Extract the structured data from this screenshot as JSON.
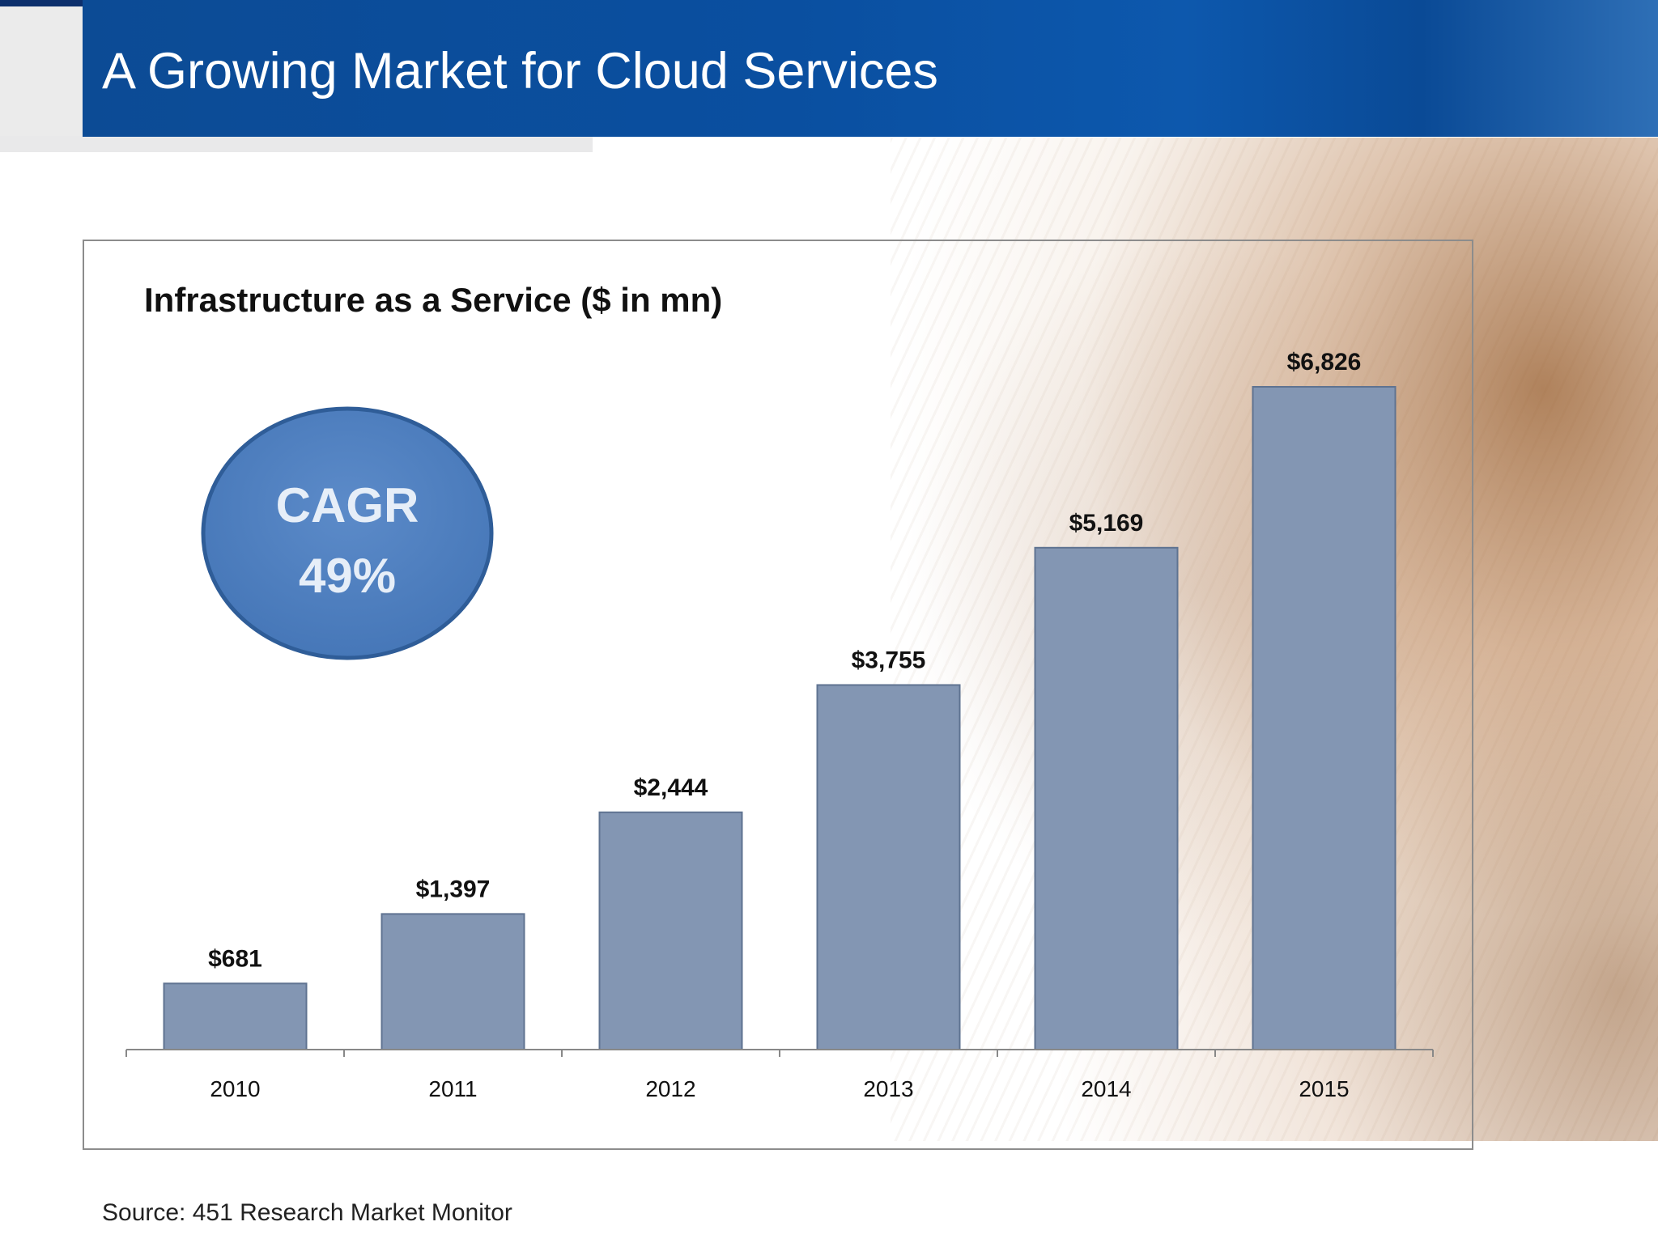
{
  "slide": {
    "title": "A Growing Market for Cloud Services",
    "source": "Source: 451 Research Market Monitor"
  },
  "callout": {
    "line1": "CAGR",
    "line2": "49%",
    "fill_color": "#4f7fc0",
    "border_color": "#2f5d98"
  },
  "chart_data": {
    "type": "bar",
    "title": "Infrastructure as a Service ($ in mn)",
    "categories": [
      "2010",
      "2011",
      "2012",
      "2013",
      "2014",
      "2015"
    ],
    "values": [
      681,
      1397,
      2444,
      3755,
      5169,
      6826
    ],
    "data_labels": [
      "$681",
      "$1,397",
      "$2,444",
      "$3,755",
      "$5,169",
      "$6,826"
    ],
    "xlabel": "",
    "ylabel": "",
    "ylim": [
      0,
      6826
    ],
    "grid": false,
    "legend": "none",
    "bar_color": "#8396b3"
  }
}
